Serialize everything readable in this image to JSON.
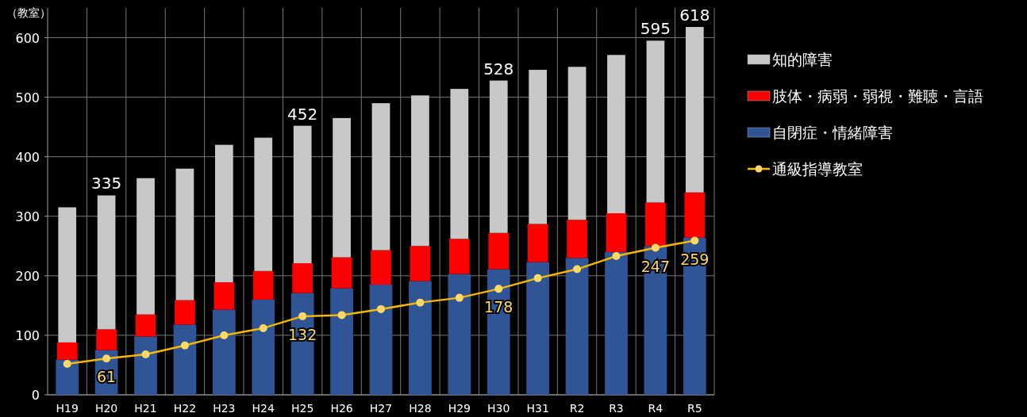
{
  "chart_data": {
    "type": "bar",
    "stacked": true,
    "ylabel": "（教室）",
    "categories": [
      "H19",
      "H20",
      "H21",
      "H22",
      "H23",
      "H24",
      "H25",
      "H26",
      "H27",
      "H28",
      "H29",
      "H30",
      "H31",
      "R2",
      "R3",
      "R4",
      "R5"
    ],
    "series": [
      {
        "name": "自閉症・情緒障害",
        "color": "#2f5597",
        "values": [
          59,
          75,
          98,
          118,
          143,
          160,
          171,
          179,
          185,
          191,
          203,
          211,
          223,
          230,
          240,
          250,
          264
        ]
      },
      {
        "name": "肢体・病弱・弱視・難聴・言語",
        "color": "#ff0000",
        "values": [
          29,
          35,
          37,
          41,
          46,
          48,
          50,
          52,
          58,
          59,
          59,
          61,
          64,
          64,
          65,
          73,
          76
        ]
      },
      {
        "name": "知的障害",
        "color": "#c8c8c8",
        "values": [
          227,
          225,
          229,
          221,
          231,
          224,
          231,
          234,
          247,
          253,
          252,
          256,
          259,
          257,
          266,
          272,
          278
        ]
      },
      {
        "name": "通級指導教室",
        "type": "line",
        "color": "#f5b800",
        "marker": "circle",
        "values": [
          52,
          61,
          68,
          83,
          100,
          112,
          132,
          134,
          144,
          155,
          163,
          178,
          196,
          211,
          233,
          247,
          259
        ],
        "value_labels": [
          null,
          "61",
          null,
          null,
          null,
          null,
          "132",
          null,
          null,
          null,
          null,
          "178",
          null,
          null,
          null,
          "247",
          "259"
        ]
      }
    ],
    "totals": [
      null,
      "335",
      null,
      null,
      null,
      null,
      "452",
      null,
      null,
      null,
      null,
      "528",
      null,
      null,
      null,
      "595",
      "618"
    ],
    "ylim": [
      0,
      650
    ],
    "yticks": [
      0,
      100,
      200,
      300,
      400,
      500,
      600
    ],
    "grid": true,
    "legend": "right"
  }
}
